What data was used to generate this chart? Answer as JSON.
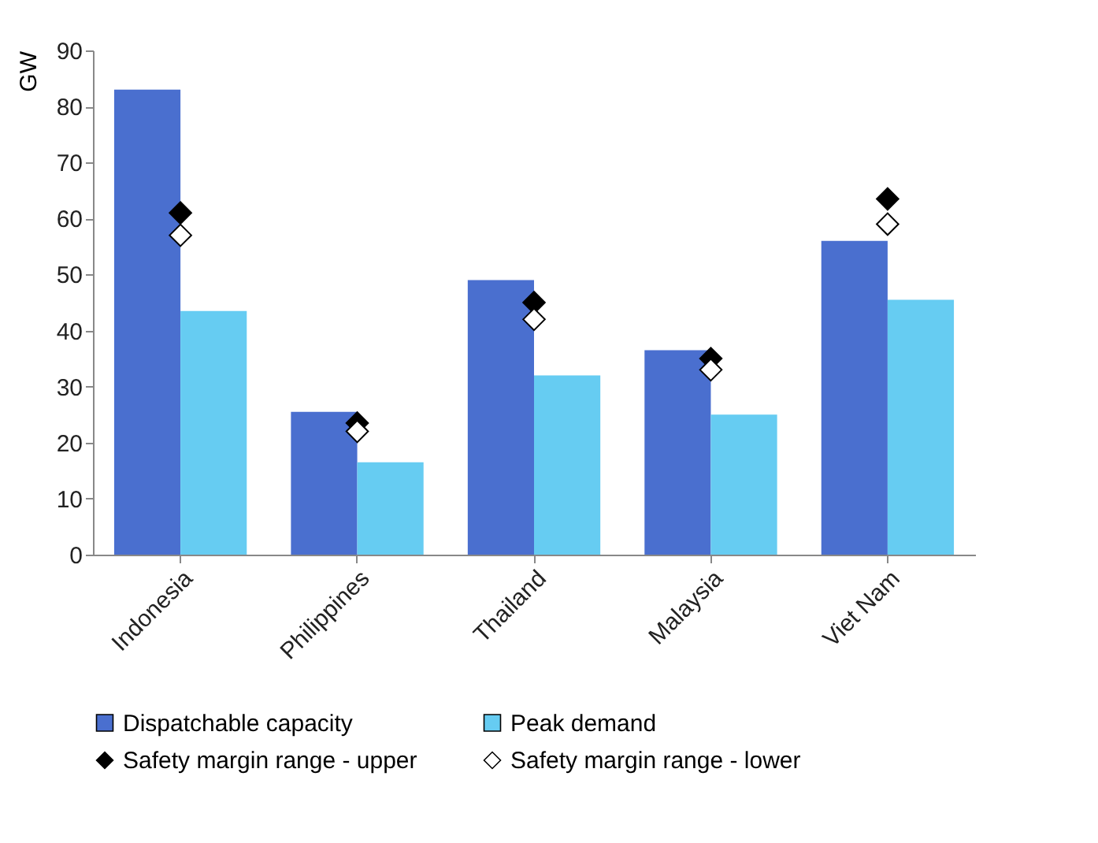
{
  "chart_data": {
    "type": "bar",
    "ylabel": "GW",
    "categories": [
      "Indonesia",
      "Philippines",
      "Thailand",
      "Malaysia",
      "Viet Nam"
    ],
    "series": [
      {
        "name": "Dispatchable capacity",
        "color": "#4a6fcf",
        "values": [
          83,
          25.5,
          49,
          36.5,
          56
        ]
      },
      {
        "name": "Peak demand",
        "color": "#66ccf2",
        "values": [
          43.5,
          16.5,
          32,
          25,
          45.5
        ]
      },
      {
        "name": "Safety margin range - upper",
        "type": "scatter",
        "color": "#000000",
        "values": [
          61,
          23.5,
          45,
          35,
          63.5
        ]
      },
      {
        "name": "Safety margin range - lower",
        "type": "scatter",
        "color": "#ffffff",
        "values": [
          57,
          22,
          42,
          33,
          59
        ]
      }
    ],
    "marker": "diamond",
    "ylim": [
      0,
      90
    ],
    "yticks": [
      0,
      10,
      20,
      30,
      40,
      50,
      60,
      70,
      80,
      90
    ],
    "grid": false,
    "legend": "bottom"
  }
}
